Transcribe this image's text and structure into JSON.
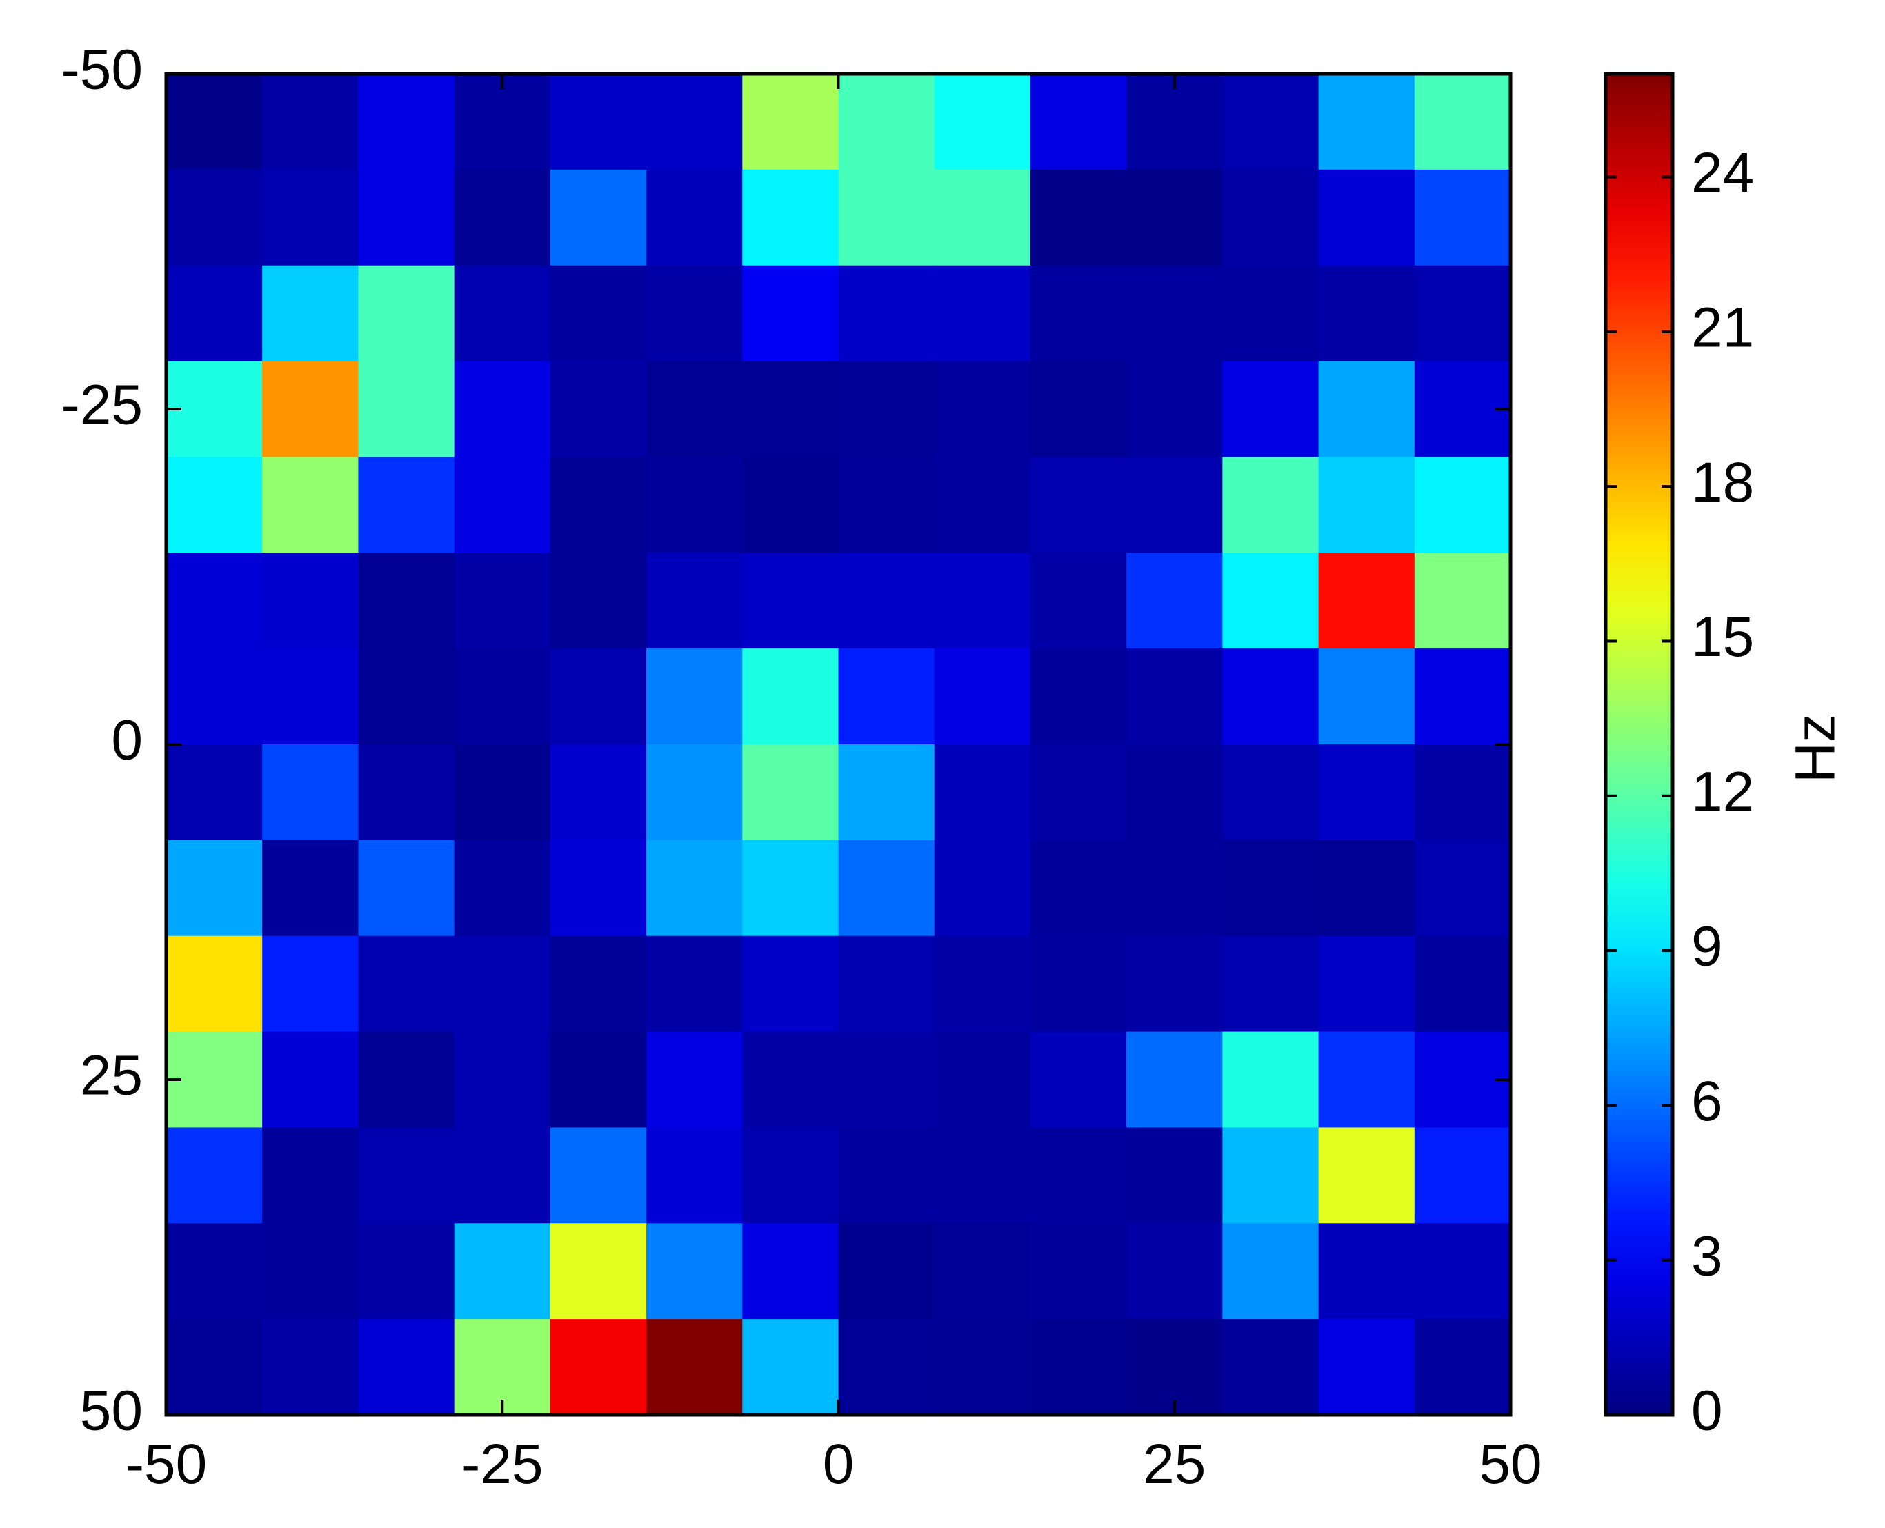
{
  "chart_data": {
    "type": "heatmap",
    "title": "",
    "xlabel": "",
    "ylabel": "",
    "colorbar_label": "Hz",
    "colormap": "jet",
    "xlim": [
      -50,
      50
    ],
    "ylim": [
      -50,
      50
    ],
    "y_axis_direction": "top-to-bottom",
    "clim": [
      0,
      26
    ],
    "x_ticks": [
      -50,
      -25,
      0,
      25,
      50
    ],
    "y_ticks": [
      -50,
      -25,
      0,
      25,
      50
    ],
    "x_tick_labels": [
      "-50",
      "-25",
      "0",
      "25",
      "50"
    ],
    "y_tick_labels": [
      "-50",
      "-25",
      "0",
      "25",
      "50"
    ],
    "colorbar_ticks": [
      0,
      3,
      6,
      9,
      12,
      15,
      18,
      21,
      24
    ],
    "colorbar_tick_labels": [
      "0",
      "3",
      "6",
      "9",
      "12",
      "15",
      "18",
      "21",
      "24"
    ],
    "grid": false,
    "n_cols": 14,
    "n_rows": 14,
    "values": [
      [
        0.3,
        1.0,
        2.5,
        0.8,
        1.8,
        1.8,
        14.0,
        11.5,
        10.0,
        2.5,
        0.8,
        1.2,
        7.5,
        11.5
      ],
      [
        1.0,
        1.2,
        2.5,
        0.5,
        6.0,
        1.5,
        9.5,
        11.5,
        11.5,
        0.3,
        0.3,
        1.0,
        2.2,
        5.0
      ],
      [
        1.5,
        8.5,
        11.5,
        1.2,
        0.8,
        1.0,
        3.0,
        1.8,
        1.8,
        0.8,
        0.8,
        0.8,
        1.0,
        1.2
      ],
      [
        10.5,
        19.0,
        11.5,
        2.5,
        1.0,
        0.5,
        0.5,
        0.6,
        0.8,
        0.5,
        0.8,
        2.5,
        7.5,
        2.2
      ],
      [
        9.5,
        13.5,
        4.5,
        2.5,
        0.5,
        0.7,
        0.4,
        0.7,
        0.8,
        1.2,
        1.2,
        11.5,
        8.5,
        9.5
      ],
      [
        2.2,
        2.0,
        0.5,
        1.0,
        0.5,
        1.5,
        1.8,
        1.8,
        1.8,
        1.0,
        4.5,
        9.5,
        22.5,
        13.0
      ],
      [
        2.2,
        2.2,
        0.5,
        0.8,
        1.2,
        6.5,
        10.5,
        4.0,
        2.5,
        0.7,
        1.0,
        2.5,
        6.5,
        2.5
      ],
      [
        1.2,
        5.0,
        1.0,
        0.4,
        2.0,
        7.0,
        12.0,
        7.5,
        1.5,
        1.0,
        0.7,
        1.2,
        1.8,
        1.0
      ],
      [
        7.5,
        0.7,
        5.5,
        0.8,
        2.2,
        7.5,
        8.5,
        6.0,
        1.5,
        0.7,
        0.7,
        0.6,
        0.5,
        1.2
      ],
      [
        17.0,
        4.0,
        1.2,
        1.2,
        0.6,
        1.0,
        1.8,
        1.2,
        1.0,
        0.8,
        1.0,
        1.2,
        1.8,
        0.8
      ],
      [
        13.0,
        2.2,
        0.5,
        1.2,
        0.4,
        2.5,
        1.0,
        1.0,
        0.8,
        1.5,
        6.0,
        10.5,
        4.5,
        2.5
      ],
      [
        4.5,
        0.7,
        1.2,
        1.2,
        6.0,
        2.2,
        1.2,
        0.8,
        0.8,
        0.8,
        0.7,
        8.0,
        15.5,
        4.0
      ],
      [
        0.8,
        0.7,
        1.0,
        8.0,
        15.5,
        6.5,
        2.5,
        0.4,
        0.6,
        0.7,
        1.0,
        7.0,
        1.5,
        1.5
      ],
      [
        0.6,
        1.0,
        2.2,
        13.5,
        23.0,
        26.0,
        8.0,
        0.6,
        0.5,
        0.4,
        0.3,
        0.7,
        2.5,
        0.8
      ]
    ]
  }
}
